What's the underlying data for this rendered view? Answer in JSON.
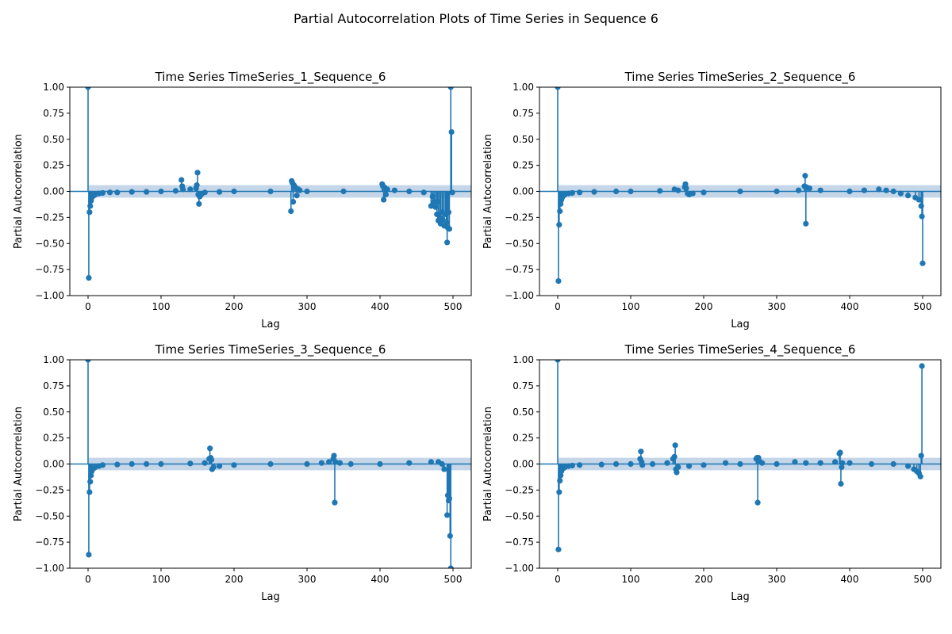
{
  "figure": {
    "suptitle": "Partial Autocorrelation Plots of Time Series in Sequence 6"
  },
  "colors": {
    "stem": "#1f77b4",
    "band": "#b0c8e0",
    "axis": "#000000"
  },
  "chart_data": [
    {
      "type": "stem",
      "title": "Time Series TimeSeries_1_Sequence_6",
      "xlabel": "Lag",
      "ylabel": "Partial Autocorrelation",
      "xlim": [
        -25,
        525
      ],
      "ylim": [
        -1.0,
        1.0
      ],
      "xticks": [
        0,
        100,
        200,
        300,
        400,
        500
      ],
      "yticks": [
        "1.00",
        "0.75",
        "0.50",
        "0.25",
        "0.00",
        "−0.25",
        "−0.50",
        "−0.75",
        "−1.00"
      ],
      "confidence_band": 0.06,
      "points": [
        [
          0,
          1.0
        ],
        [
          1,
          -0.83
        ],
        [
          2,
          -0.2
        ],
        [
          3,
          -0.14
        ],
        [
          4,
          -0.09
        ],
        [
          5,
          -0.06
        ],
        [
          6,
          -0.05
        ],
        [
          8,
          -0.04
        ],
        [
          10,
          -0.03
        ],
        [
          15,
          -0.02
        ],
        [
          20,
          -0.015
        ],
        [
          30,
          -0.01
        ],
        [
          40,
          -0.01
        ],
        [
          60,
          -0.005
        ],
        [
          80,
          -0.005
        ],
        [
          100,
          0.0
        ],
        [
          120,
          0.005
        ],
        [
          128,
          0.11
        ],
        [
          129,
          0.05
        ],
        [
          130,
          0.02
        ],
        [
          140,
          0.02
        ],
        [
          148,
          0.03
        ],
        [
          149,
          0.06
        ],
        [
          150,
          0.18
        ],
        [
          151,
          -0.03
        ],
        [
          152,
          -0.12
        ],
        [
          153,
          -0.05
        ],
        [
          155,
          -0.03
        ],
        [
          160,
          -0.01
        ],
        [
          180,
          -0.005
        ],
        [
          200,
          0.0
        ],
        [
          250,
          0.0
        ],
        [
          278,
          -0.19
        ],
        [
          279,
          0.1
        ],
        [
          280,
          0.08
        ],
        [
          281,
          -0.1
        ],
        [
          282,
          0.06
        ],
        [
          284,
          0.04
        ],
        [
          286,
          -0.04
        ],
        [
          288,
          0.02
        ],
        [
          290,
          0.01
        ],
        [
          300,
          0.0
        ],
        [
          350,
          0.0
        ],
        [
          403,
          0.07
        ],
        [
          404,
          0.05
        ],
        [
          405,
          -0.08
        ],
        [
          406,
          0.04
        ],
        [
          408,
          -0.03
        ],
        [
          410,
          0.02
        ],
        [
          420,
          0.01
        ],
        [
          440,
          0.0
        ],
        [
          460,
          -0.01
        ],
        [
          470,
          -0.14
        ],
        [
          472,
          -0.05
        ],
        [
          474,
          -0.1
        ],
        [
          476,
          -0.15
        ],
        [
          478,
          -0.22
        ],
        [
          479,
          -0.1
        ],
        [
          480,
          -0.28
        ],
        [
          482,
          -0.25
        ],
        [
          483,
          -0.31
        ],
        [
          485,
          -0.2
        ],
        [
          486,
          -0.27
        ],
        [
          488,
          -0.33
        ],
        [
          490,
          -0.22
        ],
        [
          491,
          -0.3
        ],
        [
          492,
          -0.49
        ],
        [
          493,
          -0.35
        ],
        [
          494,
          -0.2
        ],
        [
          495,
          -0.36
        ],
        [
          497,
          1.0
        ],
        [
          498,
          0.57
        ],
        [
          499,
          -0.01
        ]
      ]
    },
    {
      "type": "stem",
      "title": "Time Series TimeSeries_2_Sequence_6",
      "xlabel": "Lag",
      "ylabel": "Partial Autocorrelation",
      "xlim": [
        -25,
        525
      ],
      "ylim": [
        -1.0,
        1.0
      ],
      "xticks": [
        0,
        100,
        200,
        300,
        400,
        500
      ],
      "yticks": [
        "1.00",
        "0.75",
        "0.50",
        "0.25",
        "0.00",
        "−0.25",
        "−0.50",
        "−0.75",
        "−1.00"
      ],
      "confidence_band": 0.06,
      "points": [
        [
          0,
          1.0
        ],
        [
          1,
          -0.86
        ],
        [
          2,
          -0.32
        ],
        [
          3,
          -0.19
        ],
        [
          4,
          -0.12
        ],
        [
          5,
          -0.08
        ],
        [
          6,
          -0.06
        ],
        [
          8,
          -0.04
        ],
        [
          10,
          -0.03
        ],
        [
          15,
          -0.02
        ],
        [
          20,
          -0.015
        ],
        [
          30,
          -0.01
        ],
        [
          50,
          -0.005
        ],
        [
          80,
          0.0
        ],
        [
          100,
          0.0
        ],
        [
          140,
          0.005
        ],
        [
          160,
          0.02
        ],
        [
          165,
          0.01
        ],
        [
          174,
          0.04
        ],
        [
          175,
          0.07
        ],
        [
          176,
          0.03
        ],
        [
          178,
          -0.02
        ],
        [
          180,
          -0.03
        ],
        [
          185,
          -0.02
        ],
        [
          200,
          -0.01
        ],
        [
          250,
          0.0
        ],
        [
          300,
          0.0
        ],
        [
          330,
          0.01
        ],
        [
          338,
          0.05
        ],
        [
          339,
          0.15
        ],
        [
          340,
          -0.31
        ],
        [
          341,
          0.04
        ],
        [
          345,
          0.03
        ],
        [
          360,
          0.01
        ],
        [
          400,
          0.0
        ],
        [
          420,
          0.01
        ],
        [
          440,
          0.02
        ],
        [
          450,
          0.01
        ],
        [
          460,
          0.0
        ],
        [
          470,
          -0.02
        ],
        [
          480,
          -0.04
        ],
        [
          490,
          -0.06
        ],
        [
          495,
          -0.08
        ],
        [
          498,
          -0.14
        ],
        [
          499,
          -0.24
        ],
        [
          500,
          -0.69
        ]
      ]
    },
    {
      "type": "stem",
      "title": "Time Series TimeSeries_3_Sequence_6",
      "xlabel": "Lag",
      "ylabel": "Partial Autocorrelation",
      "xlim": [
        -25,
        525
      ],
      "ylim": [
        -1.0,
        1.0
      ],
      "xticks": [
        0,
        100,
        200,
        300,
        400,
        500
      ],
      "yticks": [
        "1.00",
        "0.75",
        "0.50",
        "0.25",
        "0.00",
        "−0.25",
        "−0.50",
        "−0.75",
        "−1.00"
      ],
      "confidence_band": 0.06,
      "points": [
        [
          0,
          1.0
        ],
        [
          1,
          -0.87
        ],
        [
          2,
          -0.27
        ],
        [
          3,
          -0.17
        ],
        [
          4,
          -0.11
        ],
        [
          5,
          -0.07
        ],
        [
          6,
          -0.05
        ],
        [
          8,
          -0.04
        ],
        [
          10,
          -0.03
        ],
        [
          15,
          -0.02
        ],
        [
          20,
          -0.01
        ],
        [
          40,
          -0.005
        ],
        [
          60,
          0.0
        ],
        [
          80,
          0.0
        ],
        [
          100,
          0.0
        ],
        [
          140,
          0.005
        ],
        [
          160,
          0.01
        ],
        [
          166,
          0.05
        ],
        [
          167,
          0.15
        ],
        [
          168,
          0.06
        ],
        [
          169,
          0.04
        ],
        [
          170,
          -0.05
        ],
        [
          172,
          -0.03
        ],
        [
          180,
          -0.02
        ],
        [
          200,
          -0.01
        ],
        [
          250,
          0.0
        ],
        [
          300,
          0.0
        ],
        [
          320,
          0.01
        ],
        [
          330,
          0.02
        ],
        [
          336,
          0.05
        ],
        [
          337,
          0.08
        ],
        [
          338,
          -0.37
        ],
        [
          339,
          0.02
        ],
        [
          345,
          0.01
        ],
        [
          360,
          0.0
        ],
        [
          400,
          0.0
        ],
        [
          440,
          0.01
        ],
        [
          470,
          0.02
        ],
        [
          480,
          0.02
        ],
        [
          485,
          0.0
        ],
        [
          488,
          -0.05
        ],
        [
          492,
          -0.49
        ],
        [
          493,
          -0.3
        ],
        [
          494,
          -0.35
        ],
        [
          495,
          -0.33
        ],
        [
          496,
          -0.69
        ],
        [
          497,
          -1.0
        ]
      ]
    },
    {
      "type": "stem",
      "title": "Time Series TimeSeries_4_Sequence_6",
      "xlabel": "Lag",
      "ylabel": "Partial Autocorrelation",
      "xlim": [
        -25,
        525
      ],
      "ylim": [
        -1.0,
        1.0
      ],
      "xticks": [
        0,
        100,
        200,
        300,
        400,
        500
      ],
      "yticks": [
        "1.00",
        "0.75",
        "0.50",
        "0.25",
        "0.00",
        "−0.25",
        "−0.50",
        "−0.75",
        "−1.00"
      ],
      "confidence_band": 0.06,
      "points": [
        [
          0,
          1.0
        ],
        [
          1,
          -0.82
        ],
        [
          2,
          -0.27
        ],
        [
          3,
          -0.16
        ],
        [
          4,
          -0.11
        ],
        [
          5,
          -0.07
        ],
        [
          6,
          -0.05
        ],
        [
          8,
          -0.04
        ],
        [
          10,
          -0.03
        ],
        [
          15,
          -0.02
        ],
        [
          20,
          -0.015
        ],
        [
          30,
          -0.01
        ],
        [
          60,
          -0.005
        ],
        [
          80,
          0.0
        ],
        [
          100,
          0.0
        ],
        [
          113,
          0.05
        ],
        [
          114,
          0.12
        ],
        [
          115,
          0.02
        ],
        [
          116,
          -0.01
        ],
        [
          130,
          0.0
        ],
        [
          150,
          0.01
        ],
        [
          158,
          0.05
        ],
        [
          160,
          0.07
        ],
        [
          161,
          0.18
        ],
        [
          162,
          -0.05
        ],
        [
          163,
          -0.08
        ],
        [
          165,
          -0.03
        ],
        [
          180,
          -0.02
        ],
        [
          200,
          -0.01
        ],
        [
          230,
          0.01
        ],
        [
          250,
          0.0
        ],
        [
          272,
          0.05
        ],
        [
          273,
          0.06
        ],
        [
          274,
          -0.37
        ],
        [
          275,
          0.06
        ],
        [
          276,
          0.03
        ],
        [
          280,
          0.01
        ],
        [
          300,
          0.0
        ],
        [
          325,
          0.02
        ],
        [
          340,
          0.01
        ],
        [
          360,
          0.01
        ],
        [
          380,
          0.02
        ],
        [
          386,
          0.1
        ],
        [
          387,
          0.11
        ],
        [
          388,
          -0.19
        ],
        [
          389,
          -0.03
        ],
        [
          390,
          0.01
        ],
        [
          400,
          0.01
        ],
        [
          430,
          0.0
        ],
        [
          460,
          0.0
        ],
        [
          480,
          -0.02
        ],
        [
          488,
          -0.05
        ],
        [
          492,
          -0.07
        ],
        [
          495,
          -0.09
        ],
        [
          497,
          -0.12
        ],
        [
          498,
          0.08
        ],
        [
          499,
          0.94
        ]
      ]
    }
  ]
}
